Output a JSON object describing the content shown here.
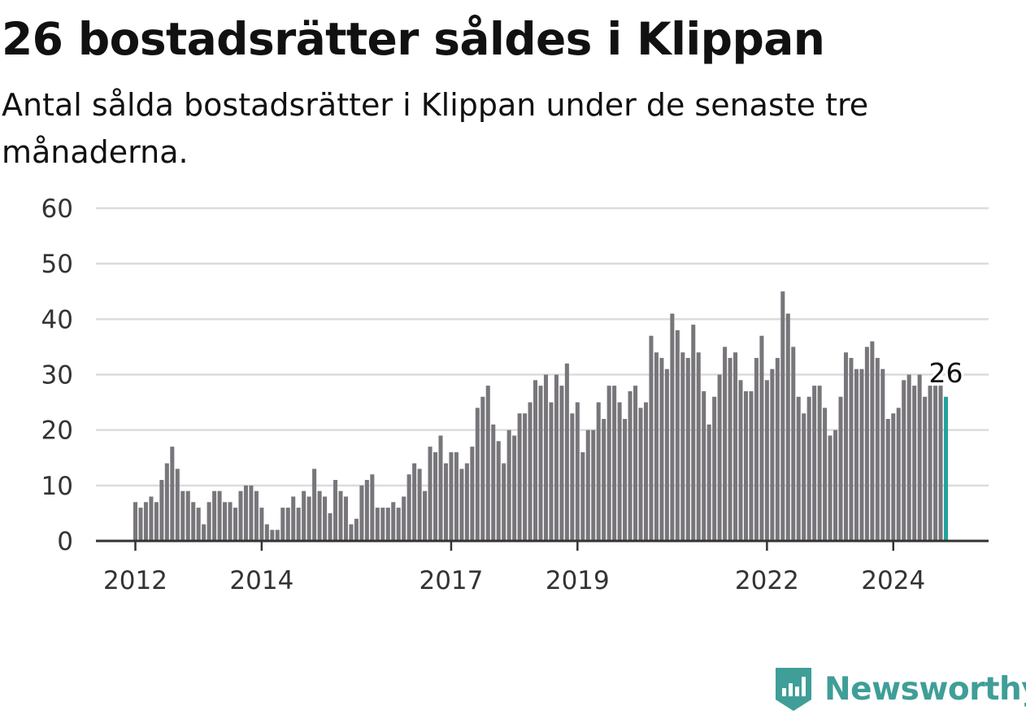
{
  "title": "26 bostadsrätter såldes i Klippan",
  "subtitle": "Antal sålda bostadsrätter i Klippan under de senaste tre månaderna.",
  "brand": {
    "name": "Newsworthy",
    "color": "#3f9e98"
  },
  "chart_data": {
    "type": "bar",
    "xlabel": "",
    "ylabel": "",
    "ylim": [
      0,
      60
    ],
    "yticks": [
      0,
      10,
      20,
      30,
      40,
      50,
      60
    ],
    "xticks": [
      "2012",
      "2014",
      "2017",
      "2019",
      "2022",
      "2024"
    ],
    "grid": true,
    "colors": {
      "bar": "#78767b",
      "highlight": "#23a39b",
      "grid": "#dcdcdc",
      "axis": "#333333"
    },
    "highlight_label": "26",
    "series": [
      {
        "values": [
          7,
          6,
          7,
          8,
          7,
          11,
          14,
          17,
          13,
          9,
          9,
          7,
          6,
          3,
          7,
          9,
          9,
          7,
          7,
          6,
          9,
          10,
          10,
          9,
          6,
          3,
          2,
          2,
          6,
          6,
          8,
          6,
          9,
          8,
          13,
          9,
          8,
          5,
          11,
          9,
          8,
          3,
          4,
          10,
          11,
          12,
          6,
          6,
          6,
          7,
          6,
          8,
          12,
          14,
          13,
          9,
          17,
          16,
          19,
          14,
          16,
          16,
          13,
          14,
          17,
          24,
          26,
          28,
          21,
          18,
          14,
          20,
          19,
          23,
          23,
          25,
          29,
          28,
          30,
          25,
          30,
          28,
          32,
          23,
          25,
          16,
          20,
          20,
          25,
          22,
          28,
          28,
          25,
          22,
          27,
          28,
          24,
          25,
          37,
          34,
          33,
          31,
          41,
          38,
          34,
          33,
          39,
          34,
          27,
          21,
          26,
          30,
          35,
          33,
          34,
          29,
          27,
          27,
          33,
          37,
          29,
          31,
          33,
          45,
          41,
          35,
          26,
          23,
          26,
          28,
          28,
          24,
          19,
          20,
          26,
          34,
          33,
          31,
          31,
          35,
          36,
          33,
          31,
          22,
          23,
          24,
          29,
          30,
          28,
          30,
          26,
          28,
          28,
          28,
          26
        ]
      }
    ]
  }
}
